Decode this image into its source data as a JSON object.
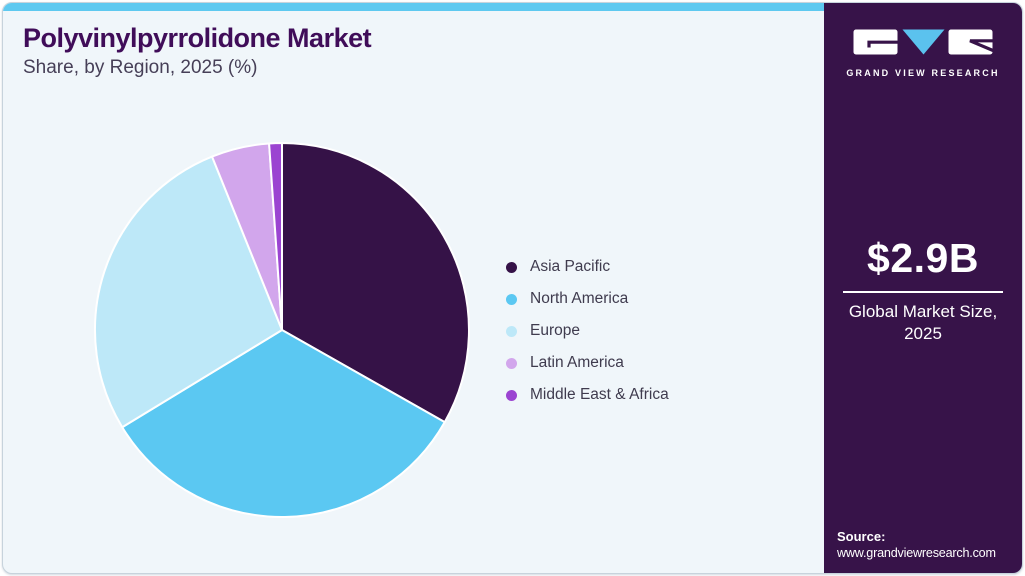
{
  "page": {
    "background": "#ffffff",
    "card_background": "#f0f6fa",
    "accent_bar_color": "#5ec9f0",
    "border_color": "#c7d3dc"
  },
  "header": {
    "title": "Polyvinylpyrrolidone Market",
    "subtitle": "Share, by Region, 2025 (%)"
  },
  "chart_data": {
    "type": "pie",
    "title": "Polyvinylpyrrolidone Market Share, by Region, 2025 (%)",
    "categories": [
      "Asia Pacific",
      "North America",
      "Europe",
      "Latin America",
      "Middle East & Africa"
    ],
    "values": [
      33.2,
      33.1,
      27.6,
      5.0,
      1.1
    ],
    "unit": "%",
    "colors": [
      "#351247",
      "#5bc8f2",
      "#bde8f8",
      "#d2a6ec",
      "#9b44d1"
    ],
    "start_angle_deg": 0,
    "direction": "clockwise",
    "slice_border_color": "#ffffff",
    "legend_position": "right"
  },
  "sidebar": {
    "background": "#371349",
    "brand_name": "GRAND VIEW RESEARCH",
    "logo_triangle_color": "#5bc2ee",
    "stat": {
      "value": "$2.9B",
      "label_line1": "Global Market Size,",
      "label_line2": "2025"
    },
    "source": {
      "label": "Source:",
      "url": "www.grandviewresearch.com"
    }
  }
}
